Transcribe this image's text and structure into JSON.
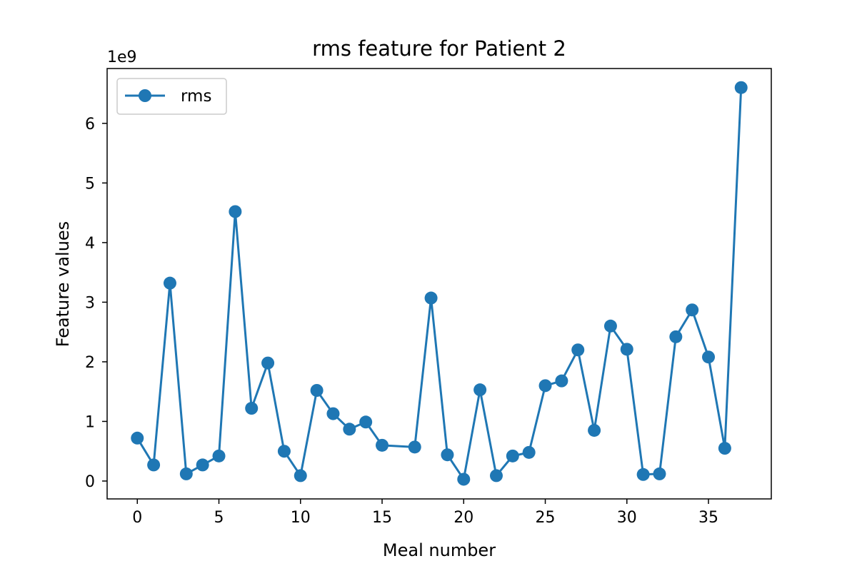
{
  "chart_data": {
    "type": "line",
    "title": "rms feature for Patient 2",
    "xlabel": "Meal number",
    "ylabel": "Feature values",
    "y_offset_label": "1e9",
    "xlim": [
      -1.85,
      38.85
    ],
    "ylim": [
      -0.3,
      6.92
    ],
    "x_ticks": [
      0,
      5,
      10,
      15,
      20,
      25,
      30,
      35
    ],
    "y_ticks": [
      0,
      1,
      2,
      3,
      4,
      5,
      6
    ],
    "grid": false,
    "legend_position": "upper-left",
    "series": [
      {
        "name": "rms",
        "color": "#1f77b4",
        "marker": "circle",
        "x": [
          0,
          1,
          2,
          3,
          4,
          5,
          6,
          7,
          8,
          9,
          10,
          11,
          12,
          13,
          14,
          15,
          17,
          18,
          19,
          20,
          21,
          22,
          23,
          24,
          25,
          26,
          27,
          28,
          29,
          30,
          31,
          32,
          33,
          34,
          35,
          36,
          37
        ],
        "y": [
          0.72,
          0.27,
          3.32,
          0.12,
          0.27,
          0.42,
          4.52,
          1.22,
          1.98,
          0.5,
          0.09,
          1.52,
          1.13,
          0.87,
          0.99,
          0.6,
          0.57,
          3.07,
          0.44,
          0.03,
          1.53,
          0.09,
          0.42,
          0.48,
          1.6,
          1.68,
          2.2,
          0.85,
          2.6,
          2.21,
          0.11,
          0.12,
          2.42,
          2.87,
          2.08,
          0.55,
          6.6
        ]
      }
    ]
  }
}
